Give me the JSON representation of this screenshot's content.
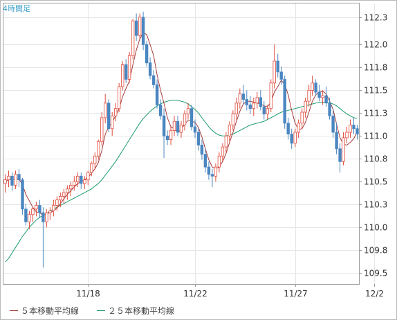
{
  "timeframe_label": "4時間足",
  "chart_data": {
    "type": "candlestick",
    "ylim": [
      109.38,
      112.45
    ],
    "y_ticks": [
      "112.3",
      "112.0",
      "111.8",
      "111.5",
      "111.3",
      "111.0",
      "110.8",
      "110.5",
      "110.3",
      "110.0",
      "109.8",
      "109.5"
    ],
    "y_tick_values": [
      112.3,
      112.0,
      111.75,
      111.5,
      111.25,
      111.0,
      110.75,
      110.5,
      110.25,
      110.0,
      109.75,
      109.5
    ],
    "x_ticks": [
      "11/18",
      "11/22",
      "11/27",
      "12/2"
    ],
    "x_tick_index": [
      24,
      55,
      84,
      107
    ],
    "up_color": "#e04a3c",
    "down_color": "#4a86c0",
    "ma5_color": "#a33a3a",
    "ma25_color": "#1a9a6a",
    "legend": [
      {
        "label": "５本移動平均線",
        "color": "#a33a3a"
      },
      {
        "label": "２５本移動平均線",
        "color": "#1a9a6a"
      }
    ],
    "candles": [
      [
        110.48,
        110.58,
        110.38,
        110.52
      ],
      [
        110.52,
        110.62,
        110.44,
        110.56
      ],
      [
        110.56,
        110.6,
        110.4,
        110.46
      ],
      [
        110.46,
        110.62,
        110.42,
        110.58
      ],
      [
        110.58,
        110.64,
        110.44,
        110.52
      ],
      [
        110.52,
        110.54,
        110.14,
        110.2
      ],
      [
        110.2,
        110.26,
        110.02,
        110.06
      ],
      [
        110.06,
        110.18,
        109.98,
        110.14
      ],
      [
        110.14,
        110.22,
        110.06,
        110.2
      ],
      [
        110.2,
        110.28,
        110.12,
        110.24
      ],
      [
        110.24,
        110.3,
        110.1,
        110.16
      ],
      [
        110.16,
        110.22,
        109.56,
        110.06
      ],
      [
        110.06,
        110.2,
        110.0,
        110.16
      ],
      [
        110.16,
        110.22,
        110.08,
        110.18
      ],
      [
        110.18,
        110.3,
        110.12,
        110.24
      ],
      [
        110.24,
        110.34,
        110.18,
        110.3
      ],
      [
        110.3,
        110.38,
        110.22,
        110.34
      ],
      [
        110.34,
        110.42,
        110.26,
        110.38
      ],
      [
        110.38,
        110.46,
        110.3,
        110.42
      ],
      [
        110.42,
        110.5,
        110.34,
        110.46
      ],
      [
        110.46,
        110.56,
        110.4,
        110.5
      ],
      [
        110.5,
        110.6,
        110.44,
        110.56
      ],
      [
        110.56,
        110.6,
        110.42,
        110.48
      ],
      [
        110.48,
        110.56,
        110.42,
        110.52
      ],
      [
        110.52,
        110.62,
        110.46,
        110.6
      ],
      [
        110.6,
        110.72,
        110.56,
        110.7
      ],
      [
        110.7,
        110.82,
        110.64,
        110.78
      ],
      [
        110.78,
        110.96,
        110.74,
        110.94
      ],
      [
        110.94,
        111.26,
        110.9,
        111.2
      ],
      [
        111.2,
        111.46,
        111.14,
        111.36
      ],
      [
        111.36,
        111.4,
        111.04,
        111.08
      ],
      [
        111.08,
        111.26,
        111.0,
        111.22
      ],
      [
        111.22,
        111.36,
        111.16,
        111.3
      ],
      [
        111.3,
        111.58,
        111.26,
        111.54
      ],
      [
        111.54,
        111.82,
        111.5,
        111.78
      ],
      [
        111.78,
        111.84,
        111.58,
        111.62
      ],
      [
        111.62,
        111.92,
        111.58,
        111.88
      ],
      [
        111.88,
        112.28,
        111.84,
        112.26
      ],
      [
        112.26,
        112.34,
        112.04,
        112.1
      ],
      [
        112.1,
        112.34,
        112.06,
        112.3
      ],
      [
        112.3,
        112.36,
        111.94,
        112.0
      ],
      [
        112.0,
        112.04,
        111.76,
        111.8
      ],
      [
        111.8,
        111.86,
        111.62,
        111.66
      ],
      [
        111.66,
        111.72,
        111.52,
        111.56
      ],
      [
        111.56,
        111.62,
        111.3,
        111.34
      ],
      [
        111.34,
        111.4,
        111.18,
        111.22
      ],
      [
        111.22,
        111.3,
        110.76,
        111.0
      ],
      [
        111.0,
        111.06,
        110.9,
        110.96
      ],
      [
        110.96,
        111.1,
        110.9,
        111.06
      ],
      [
        111.06,
        111.22,
        111.0,
        111.16
      ],
      [
        111.16,
        111.22,
        111.0,
        111.04
      ],
      [
        111.04,
        111.16,
        110.98,
        111.12
      ],
      [
        111.12,
        111.28,
        111.06,
        111.24
      ],
      [
        111.24,
        111.36,
        111.18,
        111.3
      ],
      [
        111.3,
        111.34,
        111.06,
        111.1
      ],
      [
        111.1,
        111.18,
        110.98,
        111.04
      ],
      [
        111.04,
        111.08,
        110.84,
        110.9
      ],
      [
        110.9,
        110.96,
        110.74,
        110.8
      ],
      [
        110.8,
        110.86,
        110.6,
        110.66
      ],
      [
        110.66,
        110.72,
        110.52,
        110.58
      ],
      [
        110.58,
        110.64,
        110.44,
        110.56
      ],
      [
        110.56,
        110.7,
        110.5,
        110.66
      ],
      [
        110.66,
        110.82,
        110.6,
        110.78
      ],
      [
        110.78,
        110.92,
        110.72,
        110.88
      ],
      [
        110.88,
        111.04,
        110.82,
        111.0
      ],
      [
        111.0,
        111.16,
        110.94,
        111.12
      ],
      [
        111.12,
        111.28,
        111.06,
        111.24
      ],
      [
        111.24,
        111.42,
        111.18,
        111.36
      ],
      [
        111.36,
        111.52,
        111.3,
        111.46
      ],
      [
        111.46,
        111.56,
        111.34,
        111.4
      ],
      [
        111.4,
        111.5,
        111.28,
        111.34
      ],
      [
        111.34,
        111.44,
        111.24,
        111.3
      ],
      [
        111.3,
        111.42,
        111.22,
        111.36
      ],
      [
        111.36,
        111.48,
        111.3,
        111.42
      ],
      [
        111.42,
        111.5,
        111.28,
        111.32
      ],
      [
        111.32,
        111.38,
        111.18,
        111.24
      ],
      [
        111.24,
        111.34,
        111.18,
        111.3
      ],
      [
        111.3,
        111.62,
        111.26,
        111.58
      ],
      [
        111.58,
        112.0,
        111.52,
        111.82
      ],
      [
        111.82,
        111.9,
        111.64,
        111.7
      ],
      [
        111.7,
        111.76,
        111.56,
        111.62
      ],
      [
        111.62,
        111.66,
        111.08,
        111.14
      ],
      [
        111.14,
        111.2,
        110.96,
        111.02
      ],
      [
        111.02,
        111.08,
        110.86,
        110.92
      ],
      [
        110.92,
        111.08,
        110.88,
        111.04
      ],
      [
        111.04,
        111.18,
        110.98,
        111.14
      ],
      [
        111.14,
        111.3,
        111.08,
        111.26
      ],
      [
        111.26,
        111.42,
        111.2,
        111.38
      ],
      [
        111.38,
        111.56,
        111.32,
        111.5
      ],
      [
        111.5,
        111.66,
        111.44,
        111.58
      ],
      [
        111.58,
        111.62,
        111.44,
        111.48
      ],
      [
        111.48,
        111.56,
        111.38,
        111.42
      ],
      [
        111.42,
        111.5,
        111.34,
        111.44
      ],
      [
        111.44,
        111.54,
        111.32,
        111.36
      ],
      [
        111.36,
        111.42,
        111.18,
        111.22
      ],
      [
        111.22,
        111.3,
        110.98,
        111.04
      ],
      [
        111.04,
        111.14,
        110.8,
        110.86
      ],
      [
        110.86,
        110.92,
        110.6,
        110.72
      ],
      [
        110.72,
        111.04,
        110.68,
        110.98
      ],
      [
        110.98,
        111.1,
        110.92,
        111.04
      ],
      [
        111.04,
        111.18,
        110.98,
        111.12
      ],
      [
        111.12,
        111.2,
        111.02,
        111.08
      ],
      [
        111.08,
        111.12,
        110.96,
        111.02
      ]
    ],
    "ma5": [
      110.5,
      110.52,
      110.53,
      110.53,
      110.53,
      110.47,
      110.36,
      110.29,
      110.22,
      110.17,
      110.16,
      110.13,
      110.15,
      110.16,
      110.18,
      110.21,
      110.26,
      110.31,
      110.36,
      110.4,
      110.44,
      110.48,
      110.5,
      110.52,
      110.55,
      110.59,
      110.64,
      110.71,
      110.84,
      111.02,
      111.1,
      111.15,
      111.22,
      111.3,
      111.43,
      111.52,
      111.6,
      111.78,
      111.94,
      112.06,
      112.13,
      112.11,
      112.0,
      111.88,
      111.67,
      111.5,
      111.36,
      111.2,
      111.1,
      111.08,
      111.04,
      111.07,
      111.13,
      111.17,
      111.16,
      111.15,
      111.09,
      110.99,
      110.86,
      110.74,
      110.66,
      110.64,
      110.66,
      110.72,
      110.81,
      110.93,
      111.04,
      111.16,
      111.27,
      111.35,
      111.38,
      111.38,
      111.37,
      111.36,
      111.35,
      111.33,
      111.32,
      111.37,
      111.48,
      111.54,
      111.61,
      111.56,
      111.45,
      111.28,
      111.14,
      111.07,
      111.08,
      111.15,
      111.26,
      111.38,
      111.45,
      111.48,
      111.49,
      111.46,
      111.38,
      111.29,
      111.13,
      110.98,
      110.91,
      110.9,
      110.93,
      110.97,
      111.05
    ],
    "ma25": [
      109.62,
      109.66,
      109.72,
      109.78,
      109.84,
      109.9,
      109.95,
      110.0,
      110.04,
      110.08,
      110.11,
      110.13,
      110.15,
      110.18,
      110.2,
      110.22,
      110.24,
      110.26,
      110.28,
      110.3,
      110.32,
      110.34,
      110.36,
      110.38,
      110.4,
      110.42,
      110.45,
      110.48,
      110.52,
      110.57,
      110.62,
      110.67,
      110.72,
      110.78,
      110.84,
      110.9,
      110.96,
      111.02,
      111.08,
      111.14,
      111.19,
      111.23,
      111.27,
      111.3,
      111.33,
      111.35,
      111.37,
      111.38,
      111.39,
      111.39,
      111.39,
      111.38,
      111.37,
      111.35,
      111.32,
      111.29,
      111.25,
      111.2,
      111.15,
      111.1,
      111.06,
      111.03,
      111.01,
      111.0,
      111.0,
      111.01,
      111.02,
      111.04,
      111.06,
      111.08,
      111.1,
      111.12,
      111.13,
      111.14,
      111.15,
      111.16,
      111.18,
      111.2,
      111.22,
      111.24,
      111.26,
      111.27,
      111.28,
      111.29,
      111.3,
      111.31,
      111.32,
      111.33,
      111.34,
      111.35,
      111.36,
      111.37,
      111.37,
      111.37,
      111.36,
      111.35,
      111.33,
      111.3,
      111.27,
      111.24,
      111.22,
      111.2,
      111.19
    ]
  }
}
